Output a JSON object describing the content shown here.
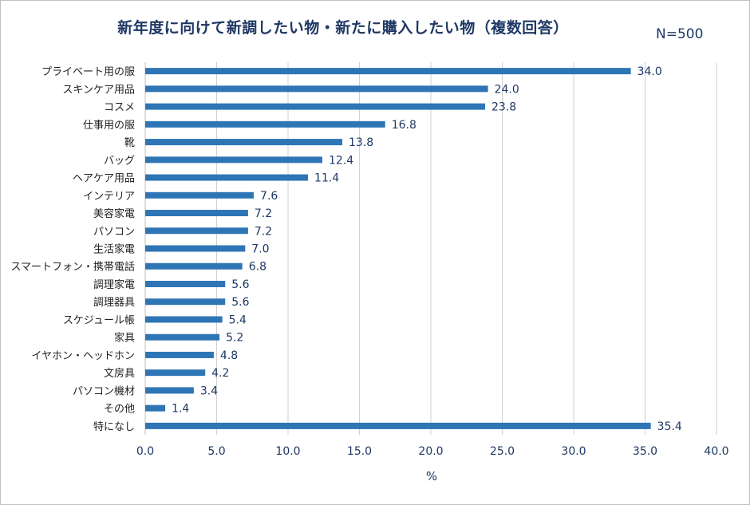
{
  "title": "新年度に向けて新調したい物・新たに購入したい物（複数回答）",
  "n_label": "N=500",
  "colors": {
    "bar": "#2e75b6",
    "grid": "#d0d0d0",
    "text": "#1f3864"
  },
  "chart_data": {
    "type": "bar",
    "orientation": "horizontal",
    "title": "新年度に向けて新調したい物・新たに購入したい物（複数回答）",
    "xlabel": "%",
    "ylabel": "",
    "xlim": [
      0,
      40
    ],
    "x_ticks": [
      "0.0",
      "5.0",
      "10.0",
      "15.0",
      "20.0",
      "25.0",
      "30.0",
      "35.0",
      "40.0"
    ],
    "grid": true,
    "legend": "none",
    "categories": [
      "プライベート用の服",
      "スキンケア用品",
      "コスメ",
      "仕事用の服",
      "靴",
      "バッグ",
      "ヘアケア用品",
      "インテリア",
      "美容家電",
      "パソコン",
      "生活家電",
      "スマートフォン・携帯電話",
      "調理家電",
      "調理器具",
      "スケジュール帳",
      "家具",
      "イヤホン・ヘッドホン",
      "文房具",
      "パソコン機材",
      "その他",
      "特になし"
    ],
    "values": [
      34.0,
      24.0,
      23.8,
      16.8,
      13.8,
      12.4,
      11.4,
      7.6,
      7.2,
      7.2,
      7.0,
      6.8,
      5.6,
      5.6,
      5.4,
      5.2,
      4.8,
      4.2,
      3.4,
      1.4,
      35.4
    ],
    "value_labels": [
      "34.0",
      "24.0",
      "23.8",
      "16.8",
      "13.8",
      "12.4",
      "11.4",
      "7.6",
      "7.2",
      "7.2",
      "7.0",
      "6.8",
      "5.6",
      "5.6",
      "5.4",
      "5.2",
      "4.8",
      "4.2",
      "3.4",
      "1.4",
      "35.4"
    ]
  }
}
